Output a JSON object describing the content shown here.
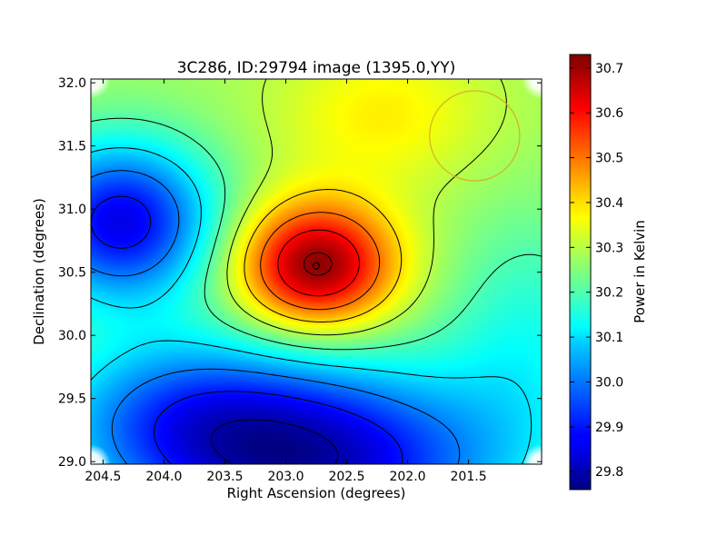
{
  "figure": {
    "title": "3C286, ID:29794 image (1395.0,YY)",
    "xlabel": "Right Ascension (degrees)",
    "ylabel": "Declination (degrees)",
    "colorbar_label": "Power in Kelvin"
  },
  "chart_data": {
    "type": "heatmap",
    "colormap": "jet",
    "title": "3C286, ID:29794 image (1395.0,YY)",
    "xlabel": "Right Ascension (degrees)",
    "ylabel": "Declination (degrees)",
    "x_axis_reversed": true,
    "xlim": [
      204.6,
      200.9
    ],
    "ylim": [
      28.98,
      32.03
    ],
    "x_ticks": [
      204.5,
      204.0,
      203.5,
      203.0,
      202.5,
      202.0,
      201.5
    ],
    "x_tick_labels": [
      "204.5",
      "204.0",
      "203.5",
      "203.0",
      "202.5",
      "202.0",
      "201.5"
    ],
    "y_ticks": [
      29.0,
      29.5,
      30.0,
      30.5,
      31.0,
      31.5,
      32.0
    ],
    "y_tick_labels": [
      "29.0",
      "29.5",
      "30.0",
      "30.5",
      "31.0",
      "31.5",
      "32.0"
    ],
    "colorbar": {
      "label": "Power in Kelvin",
      "range": [
        29.76,
        30.73
      ],
      "ticks": [
        29.8,
        29.9,
        30.0,
        30.1,
        30.2,
        30.3,
        30.4,
        30.5,
        30.6,
        30.7
      ],
      "tick_labels": [
        "29.8",
        "29.9",
        "30.0",
        "30.1",
        "30.2",
        "30.3",
        "30.4",
        "30.5",
        "30.6",
        "30.7"
      ]
    },
    "field_components": [
      {
        "kind": "background",
        "value": 30.28
      },
      {
        "kind": "peak",
        "ra": 202.75,
        "dec": 30.55,
        "amplitude": 0.45,
        "sigma_ra": 0.45,
        "sigma_dec": 0.35
      },
      {
        "kind": "trough",
        "ra": 204.35,
        "dec": 30.9,
        "amplitude": -0.42,
        "sigma_ra": 0.55,
        "sigma_dec": 0.45
      },
      {
        "kind": "trough",
        "ra": 202.75,
        "dec": 29.0,
        "amplitude": -0.45,
        "sigma_ra": 1.1,
        "sigma_dec": 0.55
      },
      {
        "kind": "trough",
        "ra": 203.9,
        "dec": 29.4,
        "amplitude": -0.2,
        "sigma_ra": 0.8,
        "sigma_dec": 0.45
      },
      {
        "kind": "peak",
        "ra": 202.2,
        "dec": 31.75,
        "amplitude": 0.1,
        "sigma_ra": 0.6,
        "sigma_dec": 0.4
      },
      {
        "kind": "trough",
        "ra": 201.0,
        "dec": 30.0,
        "amplitude": -0.12,
        "sigma_ra": 0.5,
        "sigma_dec": 0.7
      }
    ],
    "contour_levels": [
      29.8,
      29.9,
      30.0,
      30.1,
      30.2,
      30.3,
      30.4,
      30.5,
      30.6,
      30.7
    ],
    "source_marker": {
      "ra": 202.75,
      "dec": 30.55
    },
    "beam": {
      "ra": 201.45,
      "dec": 31.58,
      "radius_deg": 0.37,
      "color": "#d4b020"
    },
    "colors": {
      "frame": "#000000",
      "contour": "#000000",
      "marker": "#000000",
      "beam": "#d4b020"
    }
  }
}
